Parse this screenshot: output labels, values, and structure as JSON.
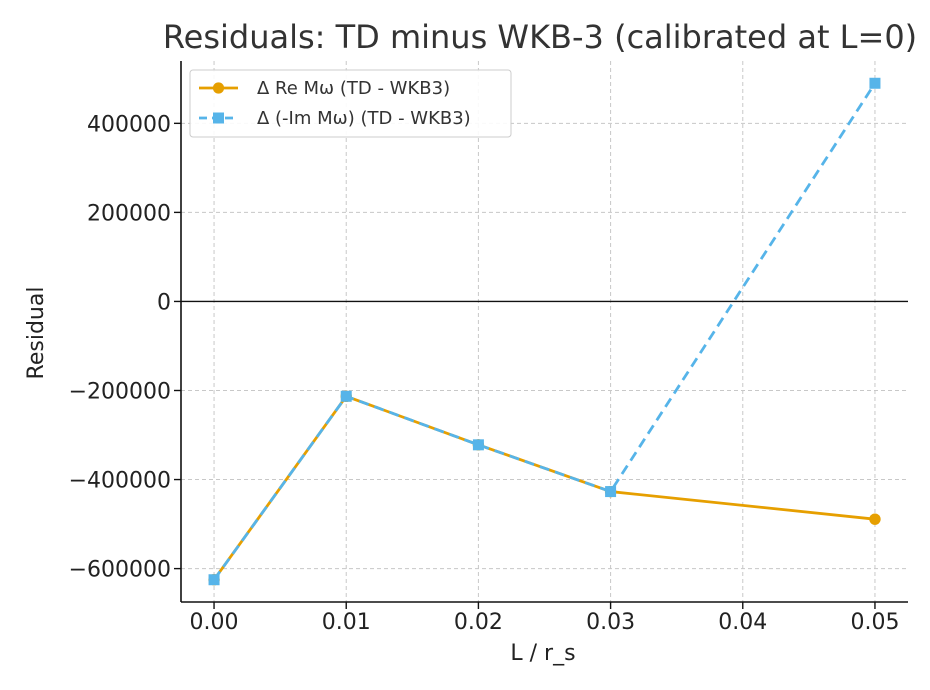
{
  "chart_data": {
    "type": "line",
    "title": "Residuals: TD minus WKB-3 (calibrated at L=0)",
    "xlabel": "L / r_s",
    "ylabel": "Residual",
    "x": [
      0.0,
      0.01,
      0.02,
      0.03,
      0.05
    ],
    "xlim": [
      -0.0025,
      0.0525
    ],
    "ylim": [
      -675000,
      540000
    ],
    "x_ticks": [
      0.0,
      0.01,
      0.02,
      0.03,
      0.04,
      0.05
    ],
    "x_tick_labels": [
      "0.00",
      "0.01",
      "0.02",
      "0.03",
      "0.04",
      "0.05"
    ],
    "y_ticks": [
      -600000,
      -400000,
      -200000,
      0,
      200000,
      400000
    ],
    "y_tick_labels": [
      "−600000",
      "−400000",
      "−200000",
      "0",
      "200000",
      "400000"
    ],
    "grid": true,
    "legend_position": "top-left",
    "zero_line": true,
    "series": [
      {
        "name": "Δ Re Mω (TD - WKB3)",
        "values": [
          -625000,
          -213000,
          -322000,
          -427000,
          -489000
        ],
        "color": "#E69F00",
        "marker": "circle",
        "line_style": "solid"
      },
      {
        "name": "Δ (-Im Mω) (TD - WKB3)",
        "values": [
          -625000,
          -213000,
          -322000,
          -427000,
          490000
        ],
        "color": "#56B4E9",
        "marker": "square",
        "line_style": "dashed"
      }
    ]
  }
}
